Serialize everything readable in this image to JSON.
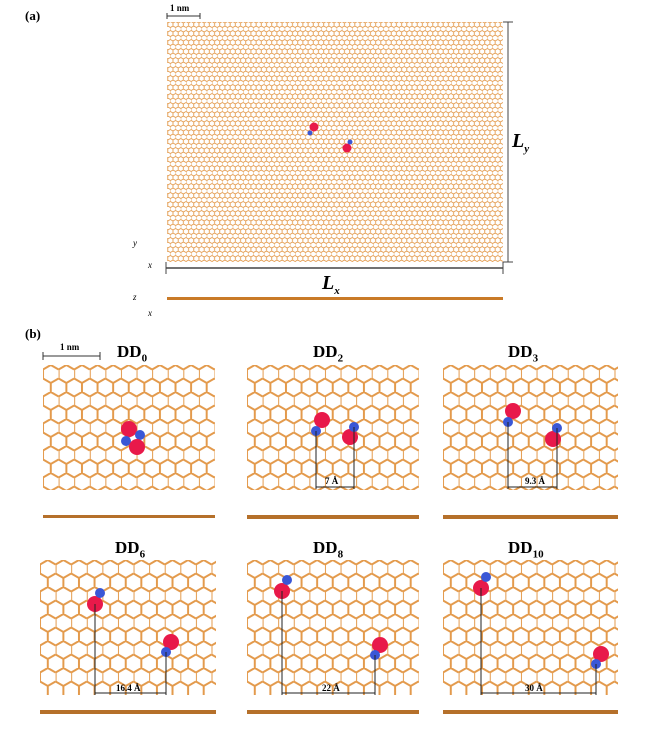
{
  "panel_a": {
    "label": "(a)",
    "scale_bar": "1 nm",
    "lx": {
      "main": "L",
      "sub": "x"
    },
    "ly": {
      "main": "L",
      "sub": "y"
    },
    "axes_top": {
      "v": "y",
      "h": "x"
    },
    "axes_side": {
      "v": "z",
      "h": "x"
    }
  },
  "panel_b": {
    "label": "(b)",
    "scale_bar": "1 nm",
    "panels": [
      {
        "title": "DD",
        "sub": "0",
        "distance": ""
      },
      {
        "title": "DD",
        "sub": "2",
        "distance": "7 Å"
      },
      {
        "title": "DD",
        "sub": "3",
        "distance": "9.3 Å"
      },
      {
        "title": "DD",
        "sub": "6",
        "distance": "16.4 Å"
      },
      {
        "title": "DD",
        "sub": "8",
        "distance": "22 Å"
      },
      {
        "title": "DD",
        "sub": "10",
        "distance": "30 Å"
      }
    ]
  },
  "colors": {
    "lattice": "#e39a4c",
    "defect_red": "#e8194a",
    "defect_blue": "#3a57d6"
  }
}
